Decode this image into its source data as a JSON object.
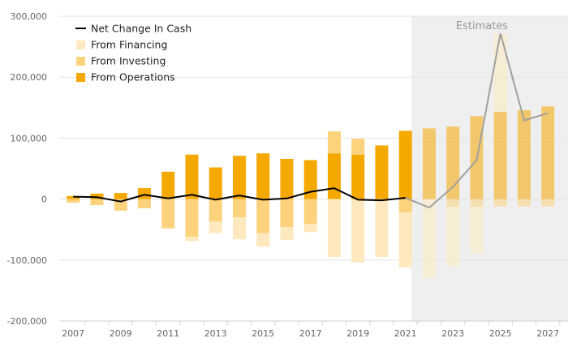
{
  "chart_data": {
    "type": "bar",
    "title": "",
    "xlabel": "",
    "ylabel": "",
    "ylim": [
      -200000,
      300000
    ],
    "y_ticks": [
      -200000,
      -100000,
      0,
      100000,
      200000,
      300000
    ],
    "y_tick_labels": [
      "-200,000",
      "-100,000",
      "0",
      "100,000",
      "200,000",
      "300,000"
    ],
    "x_tick_labels": [
      "2007",
      "2009",
      "2011",
      "2013",
      "2015",
      "2017",
      "2019",
      "2021",
      "2023",
      "2025",
      "2027"
    ],
    "years": [
      2007,
      2008,
      2009,
      2010,
      2011,
      2012,
      2013,
      2014,
      2015,
      2016,
      2017,
      2018,
      2019,
      2020,
      2021,
      2022,
      2023,
      2024,
      2025,
      2026,
      2027
    ],
    "estimates_label": "Estimates",
    "estimates_start_year": 2022,
    "grid": true,
    "legend_position": "top-left",
    "colors": {
      "financing": "#fde9bd",
      "investing": "#fcd27c",
      "operations": "#f5a800",
      "net_line": "#000000",
      "estimate_line": "#a0a0a0",
      "estimate_band": "#efefef"
    },
    "series": [
      {
        "name": "Net Change In Cash",
        "key": "net",
        "kind": "line",
        "values": [
          4000,
          3000,
          -4000,
          7000,
          1000,
          7000,
          -1000,
          6000,
          -1000,
          1000,
          12000,
          18000,
          -1000,
          -2000,
          2000,
          -14000,
          20000,
          64000,
          272000,
          129000,
          141000
        ]
      },
      {
        "name": "From Financing",
        "key": "financing",
        "kind": "bar",
        "values": [
          0,
          0,
          0,
          0,
          0,
          -7000,
          -19000,
          -36000,
          -22000,
          -21000,
          -13000,
          -95000,
          -104000,
          -95000,
          -90000,
          -130000,
          -98000,
          -77000,
          128000,
          0,
          0
        ]
      },
      {
        "name": "From Investing",
        "key": "investing",
        "kind": "bar",
        "values": [
          -6000,
          -10000,
          -19000,
          -15000,
          -48000,
          -62000,
          -37000,
          -30000,
          -56000,
          -46000,
          -41000,
          36000,
          26000,
          0,
          -22000,
          0,
          -12000,
          -12000,
          -12000,
          -12000,
          -12000
        ]
      },
      {
        "name": "From Operations",
        "key": "operations",
        "kind": "bar",
        "values": [
          5000,
          9000,
          10000,
          18000,
          45000,
          73000,
          52000,
          71000,
          75000,
          66000,
          64000,
          75000,
          73000,
          88000,
          112000,
          116000,
          119000,
          136000,
          143000,
          146000,
          152000
        ]
      }
    ]
  }
}
